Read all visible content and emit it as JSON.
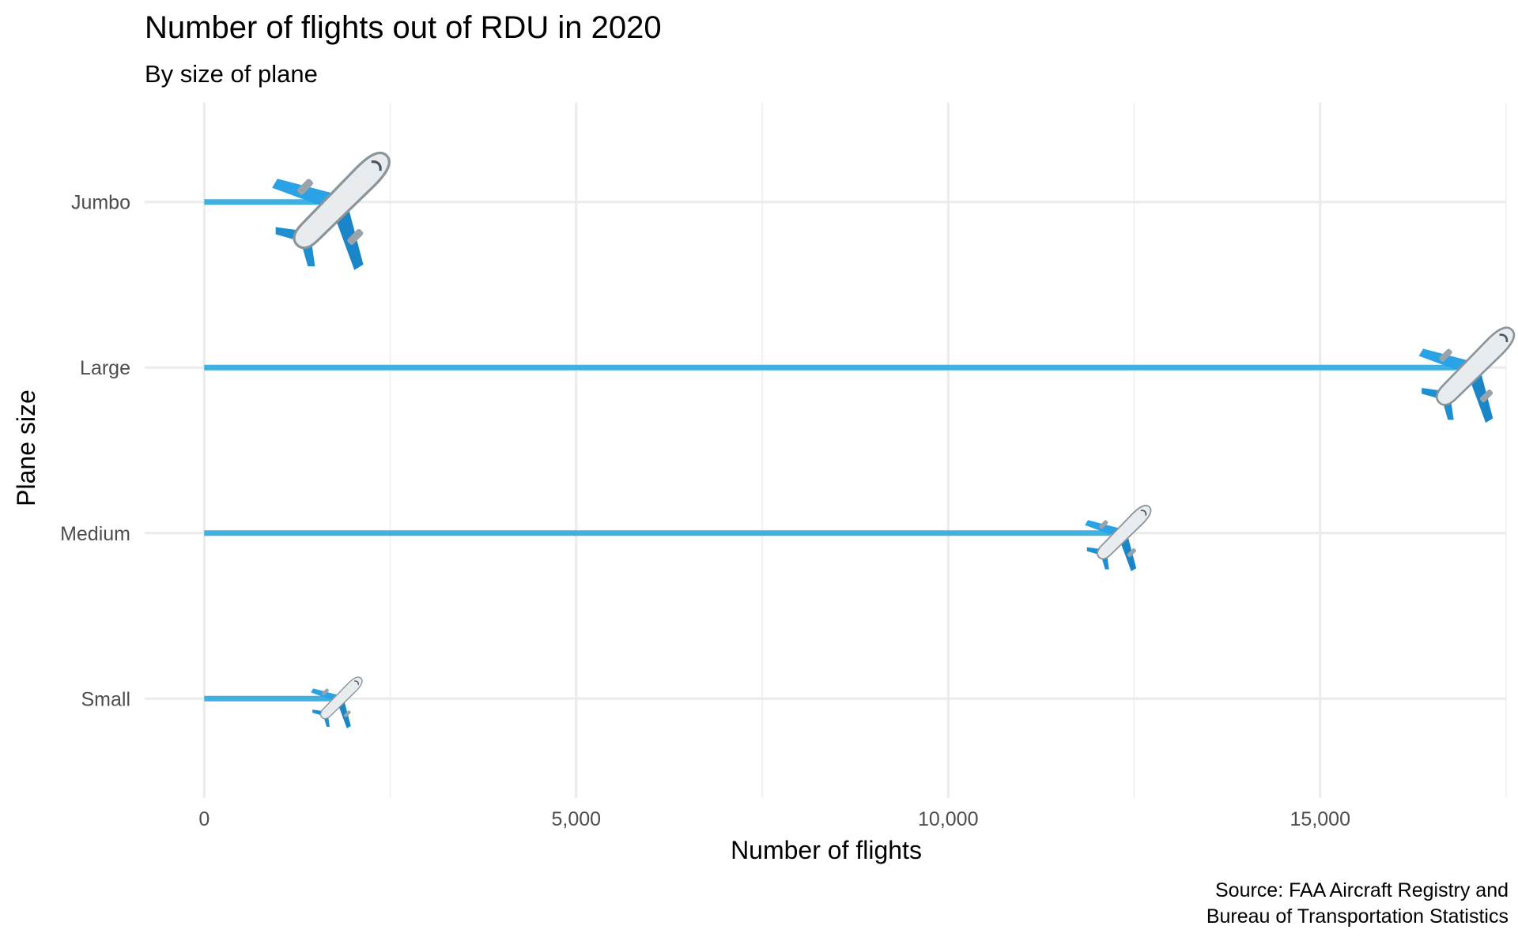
{
  "chart_data": {
    "type": "bar",
    "orientation": "horizontal",
    "title": "Number of flights out of RDU in 2020",
    "subtitle": "By size of plane",
    "xlabel": "Number of flights",
    "ylabel": "Plane size",
    "categories": [
      "Jumbo",
      "Large",
      "Medium",
      "Small"
    ],
    "values": [
      1520,
      16820,
      12180,
      1700
    ],
    "xlim": [
      -800,
      17500
    ],
    "x_ticks": [
      0,
      5000,
      10000,
      15000
    ],
    "x_tick_labels": [
      "0",
      "5,000",
      "10,000",
      "15,000"
    ],
    "x_minor_ticks": [
      2500,
      7500,
      12500,
      17500
    ],
    "marker": "airplane emoji",
    "marker_scale": [
      1.6,
      1.3,
      0.9,
      0.7
    ],
    "bar_color": "#3fb0e0",
    "grid": true,
    "caption": [
      "Source: FAA Aircraft Registry and",
      "Bureau of Transportation Statistics"
    ]
  }
}
